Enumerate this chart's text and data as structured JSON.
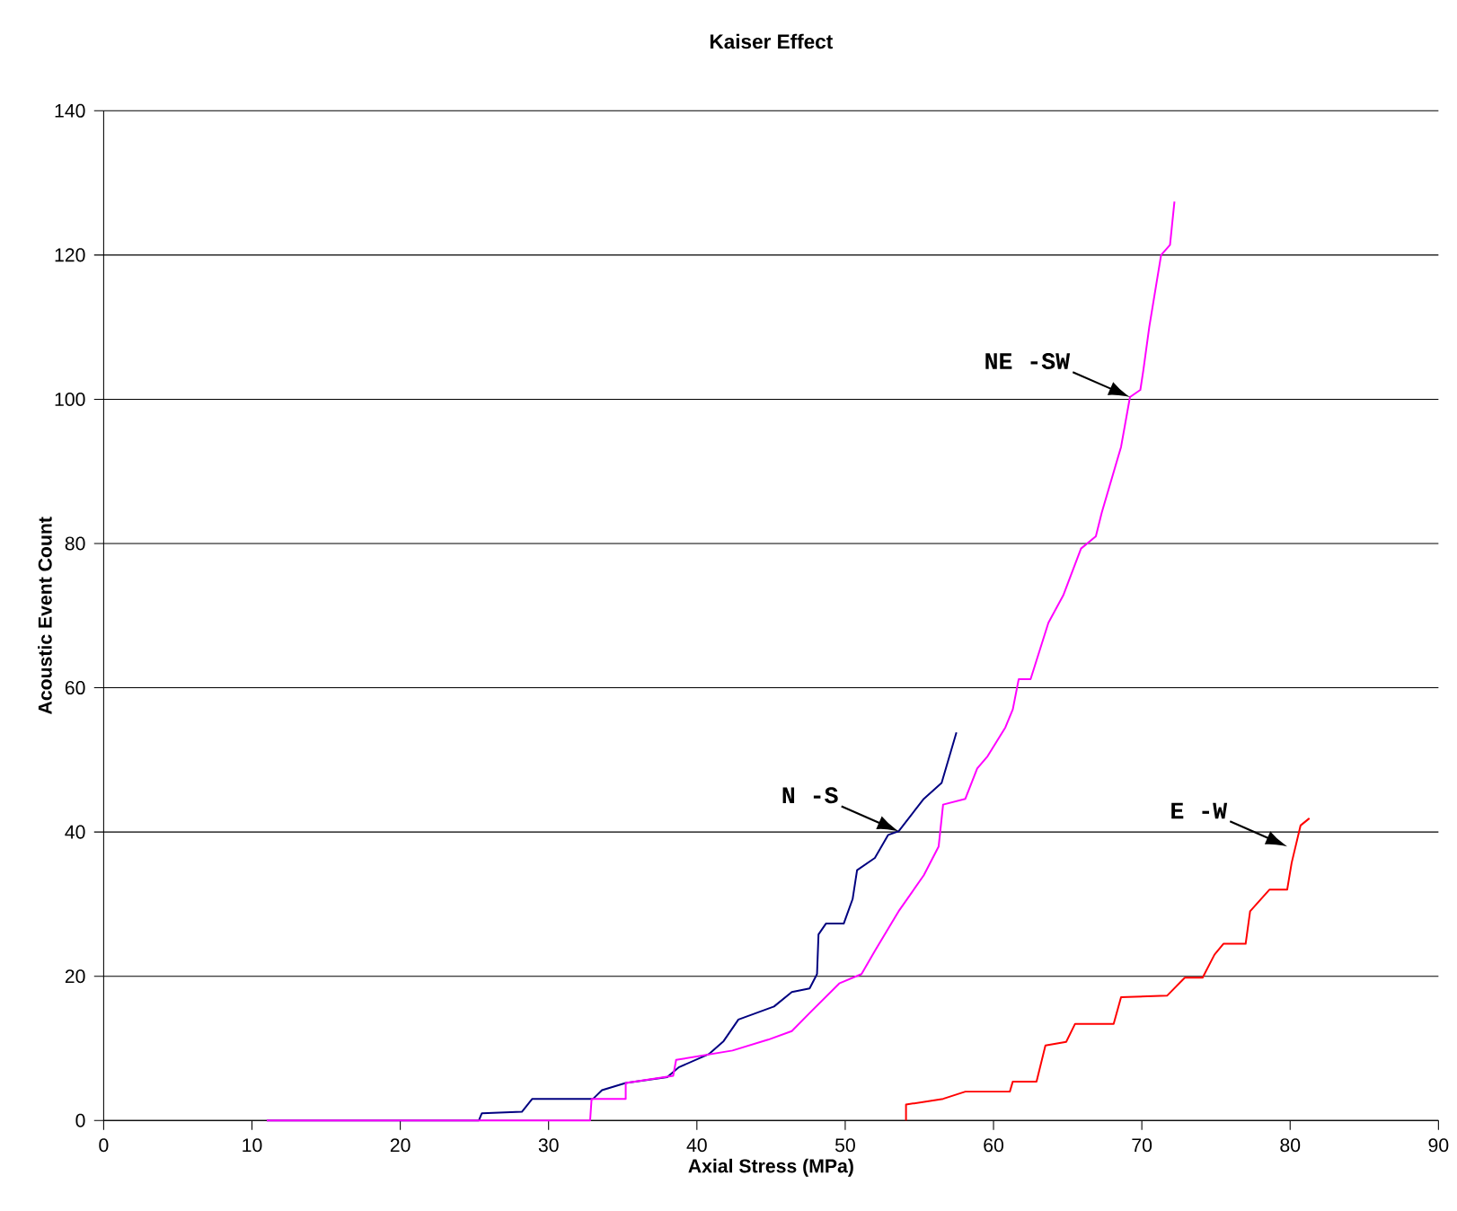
{
  "chart_data": {
    "type": "line",
    "title": "Kaiser Effect",
    "xlabel": "Axial Stress (MPa)",
    "ylabel": "Acoustic Event Count",
    "xlim": [
      0,
      90
    ],
    "xticks": [
      0,
      10,
      20,
      30,
      40,
      50,
      60,
      70,
      80,
      90
    ],
    "ylim": [
      0,
      140
    ],
    "yticks": [
      0,
      20,
      40,
      60,
      80,
      100,
      120,
      140
    ],
    "grid": "y",
    "series": [
      {
        "color": "#000080",
        "x": [
          11,
          25.3,
          25.5,
          28.2,
          28.9,
          33,
          33.6,
          35.2,
          38,
          38.8,
          40.8,
          41.8,
          42.8,
          45.2,
          46.4,
          47.6,
          48.1,
          48.2,
          48.7,
          49.9,
          50.5,
          50.8,
          52,
          52.9,
          53.6,
          55.3,
          56.5,
          57.5
        ],
        "values": [
          0,
          0,
          1,
          1.2,
          3,
          3,
          4.2,
          5.2,
          6,
          7.4,
          9.2,
          11,
          14,
          15.8,
          17.8,
          18.3,
          20.3,
          25.8,
          27.3,
          27.3,
          30.7,
          34.7,
          36.4,
          39.6,
          40.1,
          44.6,
          46.8,
          53.8
        ]
      },
      {
        "color": "#ff00ff",
        "x": [
          11,
          32.8,
          32.9,
          35.2,
          35.2,
          38.4,
          38.6,
          42.4,
          44.8,
          46.4,
          47.6,
          49.6,
          51.1,
          52,
          53.6,
          55.3,
          56.3,
          56.6,
          58.1,
          58.9,
          59.6,
          60.8,
          61.3,
          61.7,
          62.5,
          63.7,
          64.7,
          65.9,
          66.9,
          67.3,
          68.6,
          69.2,
          69.9,
          70.1,
          70.5,
          71.3,
          71.9,
          72.2
        ],
        "values": [
          0,
          0,
          3,
          3,
          5.2,
          6.2,
          8.4,
          9.7,
          11.2,
          12.4,
          14.9,
          19,
          20.3,
          23.5,
          29,
          34,
          38,
          43.8,
          44.6,
          48.8,
          50.5,
          54.5,
          57,
          61.2,
          61.2,
          69,
          72.8,
          79.3,
          81,
          84.3,
          93.4,
          100.3,
          101.3,
          104,
          110,
          120,
          121.4,
          127.4
        ]
      },
      {
        "color": "#ff0000",
        "x": [
          54.1,
          54.1,
          56.6,
          58.1,
          61.1,
          61.3,
          62.9,
          63.5,
          64.9,
          65.5,
          68.1,
          68.6,
          71.7,
          72.9,
          74.1,
          74.9,
          75.5,
          77,
          77.3,
          78.6,
          79.8,
          80.1,
          80.7,
          81.3
        ],
        "values": [
          0,
          2.2,
          3,
          4,
          4,
          5.4,
          5.4,
          10.4,
          10.9,
          13.4,
          13.4,
          17.1,
          17.3,
          19.8,
          19.8,
          23,
          24.5,
          24.5,
          29,
          32,
          32,
          35.7,
          40.9,
          41.9
        ]
      }
    ],
    "annotations": [
      {
        "text": "NE -SW",
        "x": 69.2,
        "y": 100.3
      },
      {
        "text": "N -S",
        "x": 53.6,
        "y": 40.1
      },
      {
        "text": "E -W",
        "x": 79.8,
        "y": 38
      }
    ]
  }
}
